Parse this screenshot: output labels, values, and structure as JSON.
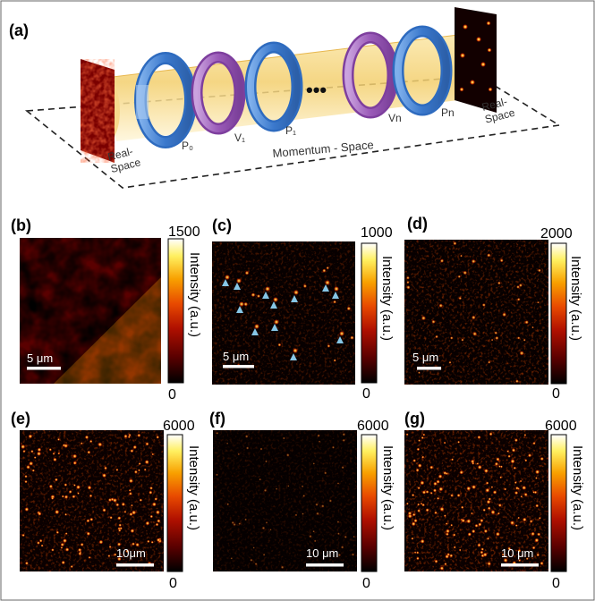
{
  "panel_a": {
    "label": "(a)",
    "ring_labels": [
      "P₀",
      "V₁",
      "P₁",
      "Vn",
      "Pn"
    ],
    "ellipsis": "•••",
    "plane_left_label": [
      "Real-",
      "Space"
    ],
    "plane_right_label": [
      "Real-",
      "Space"
    ],
    "momentum_label": "Momentum - Space"
  },
  "panels": [
    {
      "id": "b",
      "label": "(b)",
      "cbar_max": "1500",
      "cbar_min": "0",
      "cbar_title": "Intensity (a.u.)",
      "scalebar": "5 μm",
      "pattern": "speckle"
    },
    {
      "id": "c",
      "label": "(c)",
      "cbar_max": "1000",
      "cbar_min": "0",
      "cbar_title": "Intensity (a.u.)",
      "scalebar": "5 μm",
      "pattern": "sparse-arrows"
    },
    {
      "id": "d",
      "label": "(d)",
      "cbar_max": "2000",
      "cbar_min": "0",
      "cbar_title": "Intensity (a.u.)",
      "scalebar": "5 μm",
      "pattern": "sparse"
    },
    {
      "id": "e",
      "label": "(e)",
      "cbar_max": "6000",
      "cbar_min": "0",
      "cbar_title": "Intensity (a.u.)",
      "scalebar": "10μm",
      "pattern": "dense"
    },
    {
      "id": "f",
      "label": "(f)",
      "cbar_max": "6000",
      "cbar_min": "0",
      "cbar_title": "Intensity (a.u.)",
      "scalebar": "10 μm",
      "pattern": "faint"
    },
    {
      "id": "g",
      "label": "(g)",
      "cbar_max": "6000",
      "cbar_min": "0",
      "cbar_title": "Intensity (a.u.)",
      "scalebar": "10 μm",
      "pattern": "dense"
    }
  ],
  "colors": {
    "beam": "#f3d27a",
    "polarizer_ring": "#4a84d4",
    "phase_ring": "#9a5ab8",
    "arrow": "#86c6e6",
    "colormap": [
      "#000000",
      "#5a0000",
      "#b01000",
      "#e84a00",
      "#f8a000",
      "#fff060",
      "#ffffff"
    ]
  }
}
